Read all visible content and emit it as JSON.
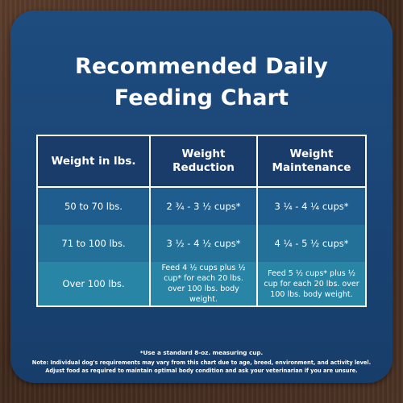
{
  "title": {
    "line1": "Recommended Daily",
    "line2": "Feeding Chart"
  },
  "table": {
    "headers": [
      "Weight in lbs.",
      "Weight Reduction",
      "Weight Maintenance"
    ],
    "rows": [
      [
        "50 to 70 lbs.",
        "2 ¾ - 3 ½ cups*",
        "3 ¼ - 4 ¼ cups*"
      ],
      [
        "71 to 100 lbs.",
        "3 ½ - 4 ½ cups*",
        "4 ¼ - 5 ½ cups*"
      ],
      [
        "Over 100 lbs.",
        "Feed 4 ½ cups plus ½ cup* for each 20 lbs. over 100 lbs. body weight.",
        "Feed 5 ½ cups* plus ½ cup for each 20 lbs. over 100 lbs. body weight."
      ]
    ]
  },
  "footnotes": {
    "measure": "*Use a standard 8-oz. measuring cup.",
    "note_line1": "Note: Individual dog's requirements may vary from this chart due to age, breed, environment, and activity level.",
    "note_line2": "Adjust food as required to maintain optimal body condition and ask your veterinarian if you are unsure."
  },
  "colors": {
    "background_wood": "#4b3224",
    "card_blue": "#1a4475",
    "header_row": "#193c6b",
    "row1": "#1f5d8e",
    "row2": "#237099",
    "row3": "#2885a6",
    "text": "#ffffff"
  }
}
